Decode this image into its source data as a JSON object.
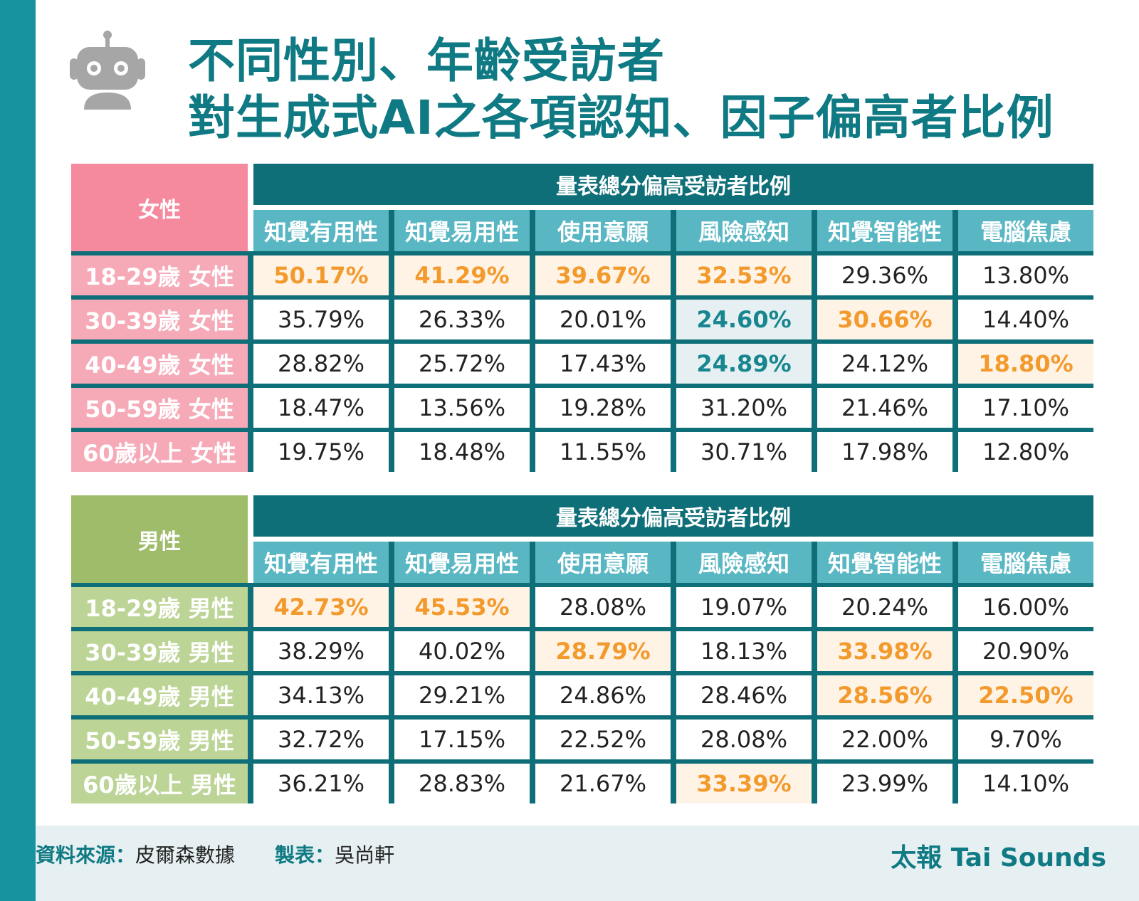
{
  "colors": {
    "accent": "#17939f",
    "dark_teal": "#0f6f78",
    "header_teal": "#59b7c4",
    "female": "#f58a9e",
    "female_row": "#f6aab8",
    "male": "#9fbc6b",
    "male_row": "#bcd495",
    "highlight_orange": "#f39a2d",
    "highlight_blue": "#17868f"
  },
  "icons": {
    "robot": "robot-icon"
  },
  "title": {
    "line1": "不同性別、年齡受訪者",
    "line2": "對生成式AI之各項認知、因子偏高者比例"
  },
  "chart_data": [
    {
      "type": "table",
      "group": "女性",
      "subheader": "量表總分偏高受訪者比例",
      "columns": [
        "知覺有用性",
        "知覺易用性",
        "使用意願",
        "風險感知",
        "知覺智能性",
        "電腦焦慮"
      ],
      "rows": [
        {
          "label": "18-29歲 女性",
          "values": [
            "50.17%",
            "41.29%",
            "39.67%",
            "32.53%",
            "29.36%",
            "13.80%"
          ],
          "highlight": [
            "o",
            "o",
            "o",
            "o",
            "",
            ""
          ]
        },
        {
          "label": "30-39歲 女性",
          "values": [
            "35.79%",
            "26.33%",
            "20.01%",
            "24.60%",
            "30.66%",
            "14.40%"
          ],
          "highlight": [
            "",
            "",
            "",
            "b",
            "o",
            ""
          ]
        },
        {
          "label": "40-49歲 女性",
          "values": [
            "28.82%",
            "25.72%",
            "17.43%",
            "24.89%",
            "24.12%",
            "18.80%"
          ],
          "highlight": [
            "",
            "",
            "",
            "b",
            "",
            "o"
          ]
        },
        {
          "label": "50-59歲 女性",
          "values": [
            "18.47%",
            "13.56%",
            "19.28%",
            "31.20%",
            "21.46%",
            "17.10%"
          ],
          "highlight": [
            "",
            "",
            "",
            "",
            "",
            ""
          ]
        },
        {
          "label": "60歲以上 女性",
          "values": [
            "19.75%",
            "18.48%",
            "11.55%",
            "30.71%",
            "17.98%",
            "12.80%"
          ],
          "highlight": [
            "",
            "",
            "",
            "",
            "",
            ""
          ]
        }
      ]
    },
    {
      "type": "table",
      "group": "男性",
      "subheader": "量表總分偏高受訪者比例",
      "columns": [
        "知覺有用性",
        "知覺易用性",
        "使用意願",
        "風險感知",
        "知覺智能性",
        "電腦焦慮"
      ],
      "rows": [
        {
          "label": "18-29歲 男性",
          "values": [
            "42.73%",
            "45.53%",
            "28.08%",
            "19.07%",
            "20.24%",
            "16.00%"
          ],
          "highlight": [
            "o",
            "o",
            "",
            "",
            "",
            ""
          ]
        },
        {
          "label": "30-39歲 男性",
          "values": [
            "38.29%",
            "40.02%",
            "28.79%",
            "18.13%",
            "33.98%",
            "20.90%"
          ],
          "highlight": [
            "",
            "",
            "o",
            "",
            "o",
            ""
          ]
        },
        {
          "label": "40-49歲 男性",
          "values": [
            "34.13%",
            "29.21%",
            "24.86%",
            "28.46%",
            "28.56%",
            "22.50%"
          ],
          "highlight": [
            "",
            "",
            "",
            "",
            "o",
            "o"
          ]
        },
        {
          "label": "50-59歲 男性",
          "values": [
            "32.72%",
            "17.15%",
            "22.52%",
            "28.08%",
            "22.00%",
            "9.70%"
          ],
          "highlight": [
            "",
            "",
            "",
            "",
            "",
            ""
          ]
        },
        {
          "label": "60歲以上 男性",
          "values": [
            "36.21%",
            "28.83%",
            "21.67%",
            "33.39%",
            "23.99%",
            "14.10%"
          ],
          "highlight": [
            "",
            "",
            "",
            "o",
            "",
            ""
          ]
        }
      ]
    }
  ],
  "footer": {
    "source_label": "資料來源：",
    "source": "皮爾森數據",
    "maker_label": "製表：",
    "maker": "吳尚軒",
    "brand": "太報 Tai Sounds"
  }
}
